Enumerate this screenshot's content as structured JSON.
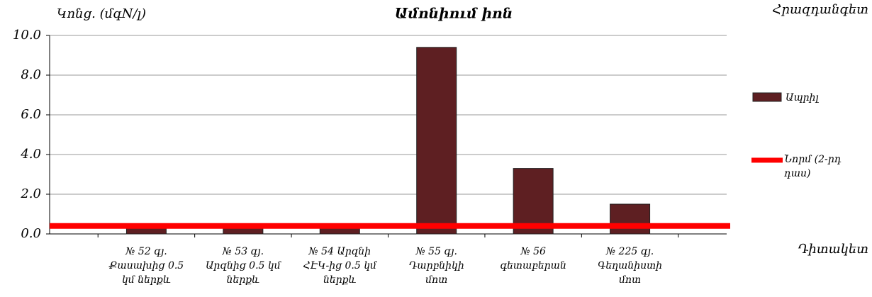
{
  "chart_data": {
    "type": "bar",
    "title": "Ամոնիում իոն",
    "y_label": "Կոնց. (մգN/լ)",
    "x_label": "Դիտակետ",
    "legend_title": "Հրազդանգետ",
    "categories": [
      "№ 52 գյ. Քասախից 0.5 կմ ներքև",
      "№ 53 գյ. Արզնից 0.5 կմ ներքև",
      "№ 54 Արզնի ՀԷԿ-ից 0.5 կմ ներքև",
      "№ 55 գյ. Դարբնիկի մոտ",
      "№ 56 գետաբերան",
      "№ 225 գյ. Գեղանիստի մոտ"
    ],
    "series": [
      {
        "name": "Ապրիլ",
        "color": "#5e1f22",
        "values": [
          0.5,
          0.5,
          0.5,
          9.4,
          3.3,
          1.5
        ]
      }
    ],
    "norm": {
      "name": "Նորմ (2-րդ դաս)",
      "value": 0.4,
      "color": "#ff0000"
    },
    "ylim": [
      0,
      10
    ],
    "yticks": [
      {
        "value": 0,
        "label": "0.0"
      },
      {
        "value": 2,
        "label": "2.0"
      },
      {
        "value": 4,
        "label": "4.0"
      },
      {
        "value": 6,
        "label": "6.0"
      },
      {
        "value": 8,
        "label": "8.0"
      },
      {
        "value": 10,
        "label": "10.0"
      }
    ],
    "grid": true,
    "legend": "right"
  }
}
